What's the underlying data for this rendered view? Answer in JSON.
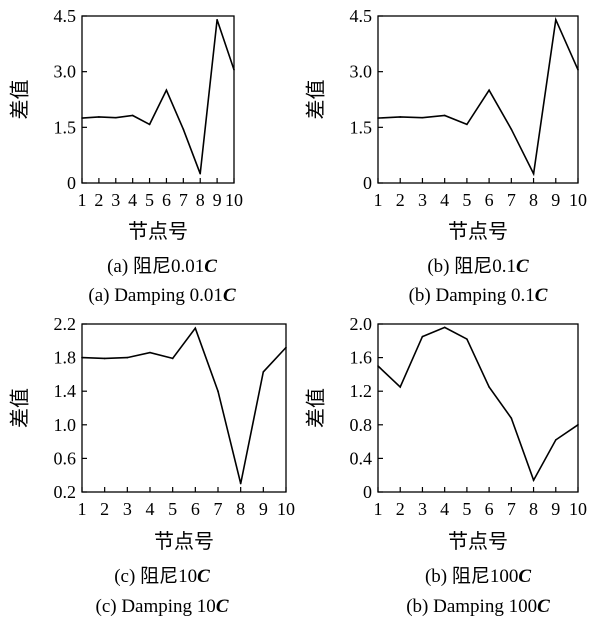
{
  "chart_data": [
    {
      "type": "line",
      "x": [
        1,
        2,
        3,
        4,
        5,
        6,
        7,
        8,
        9,
        10
      ],
      "values": [
        1.75,
        1.78,
        1.76,
        1.82,
        1.58,
        2.5,
        1.45,
        0.25,
        4.4,
        3.05
      ],
      "ylim": [
        0,
        4.5
      ],
      "yticks": [
        "0",
        "1.5",
        "3.0",
        "4.5"
      ],
      "xticks": [
        "1",
        "2",
        "3",
        "4",
        "5",
        "6",
        "7",
        "8",
        "9",
        "10"
      ],
      "xlabel": "节点号",
      "ylabel": "差值",
      "caption_cn": "(a)  阻尼0.01",
      "caption_en": "(a)  Damping 0.01",
      "caption_symbol": "C"
    },
    {
      "type": "line",
      "x": [
        1,
        2,
        3,
        4,
        5,
        6,
        7,
        8,
        9,
        10
      ],
      "values": [
        1.75,
        1.78,
        1.76,
        1.82,
        1.58,
        2.5,
        1.45,
        0.25,
        4.4,
        3.05
      ],
      "ylim": [
        0,
        4.5
      ],
      "yticks": [
        "0",
        "1.5",
        "3.0",
        "4.5"
      ],
      "xticks": [
        "1",
        "2",
        "3",
        "4",
        "5",
        "6",
        "7",
        "8",
        "9",
        "10"
      ],
      "xlabel": "节点号",
      "ylabel": "差值",
      "caption_cn": "(b)  阻尼0.1",
      "caption_en": "(b)  Damping 0.1",
      "caption_symbol": "C"
    },
    {
      "type": "line",
      "x": [
        1,
        2,
        3,
        4,
        5,
        6,
        7,
        8,
        9,
        10
      ],
      "values": [
        1.8,
        1.79,
        1.8,
        1.86,
        1.79,
        2.15,
        1.4,
        0.3,
        1.63,
        1.92
      ],
      "ylim": [
        0.2,
        2.2
      ],
      "yticks": [
        "0.2",
        "0.6",
        "1.0",
        "1.4",
        "1.8",
        "2.2"
      ],
      "xticks": [
        "1",
        "2",
        "3",
        "4",
        "5",
        "6",
        "7",
        "8",
        "9",
        "10"
      ],
      "xlabel": "节点号",
      "ylabel": "差值",
      "caption_cn": "(c)  阻尼10",
      "caption_en": "(c)  Damping 10",
      "caption_symbol": "C"
    },
    {
      "type": "line",
      "x": [
        1,
        2,
        3,
        4,
        5,
        6,
        7,
        8,
        9,
        10
      ],
      "values": [
        1.5,
        1.25,
        1.85,
        1.96,
        1.82,
        1.25,
        0.88,
        0.14,
        0.62,
        0.8
      ],
      "ylim": [
        0,
        2.0
      ],
      "yticks": [
        "0",
        "0.4",
        "0.8",
        "1.2",
        "1.6",
        "2.0"
      ],
      "xticks": [
        "1",
        "2",
        "3",
        "4",
        "5",
        "6",
        "7",
        "8",
        "9",
        "10"
      ],
      "xlabel": "节点号",
      "ylabel": "差值",
      "caption_cn": "(b)  阻尼100",
      "caption_en": "(b)  Damping 100",
      "caption_symbol": "C"
    }
  ]
}
